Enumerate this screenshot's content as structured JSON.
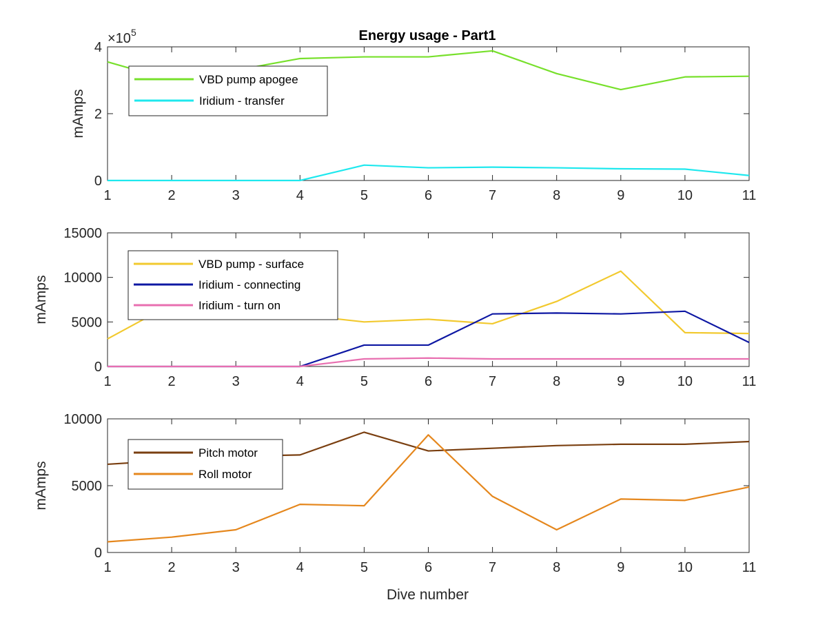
{
  "title": "Energy usage - Part1",
  "chart_data": [
    {
      "type": "line",
      "title": "Energy usage - Part1",
      "xlabel": "",
      "ylabel": "mAmps",
      "x": [
        1,
        2,
        3,
        4,
        5,
        6,
        7,
        8,
        9,
        10,
        11
      ],
      "xlim": [
        1,
        11
      ],
      "ylim": [
        0,
        400000
      ],
      "y_multiplier": "×10^5",
      "y_multiplier_base": "×10",
      "y_multiplier_exp": "5",
      "xticks": [
        "1",
        "2",
        "3",
        "4",
        "5",
        "6",
        "7",
        "8",
        "9",
        "10",
        "11"
      ],
      "yticks": [
        {
          "value": 0,
          "label": "0"
        },
        {
          "value": 200000,
          "label": "2"
        },
        {
          "value": 400000,
          "label": "4"
        }
      ],
      "legend_placement": "top-left",
      "series": [
        {
          "name": "VBD pump apogee",
          "color": "#77e02b",
          "values": [
            355000,
            300000,
            330000,
            365000,
            370000,
            370000,
            388000,
            320000,
            272000,
            310000,
            312000
          ]
        },
        {
          "name": "Iridium - transfer",
          "color": "#1ee8ee",
          "values": [
            0,
            0,
            0,
            0,
            46000,
            38000,
            40000,
            38000,
            35000,
            34000,
            15000
          ]
        }
      ]
    },
    {
      "type": "line",
      "xlabel": "",
      "ylabel": "mAmps",
      "x": [
        1,
        2,
        3,
        4,
        5,
        6,
        7,
        8,
        9,
        10,
        11
      ],
      "xlim": [
        1,
        11
      ],
      "ylim": [
        0,
        15000
      ],
      "xticks": [
        "1",
        "2",
        "3",
        "4",
        "5",
        "6",
        "7",
        "8",
        "9",
        "10",
        "11"
      ],
      "yticks": [
        {
          "value": 0,
          "label": "0"
        },
        {
          "value": 5000,
          "label": "5000"
        },
        {
          "value": 10000,
          "label": "10000"
        },
        {
          "value": 15000,
          "label": "15000"
        }
      ],
      "legend_placement": "top-left",
      "series": [
        {
          "name": "VBD pump - surface",
          "color": "#f2c92e",
          "values": [
            3100,
            7000,
            6300,
            5800,
            5000,
            5300,
            4800,
            7300,
            10700,
            3800,
            3700
          ]
        },
        {
          "name": "Iridium - connecting",
          "color": "#0d17a3",
          "values": [
            0,
            0,
            0,
            0,
            2400,
            2400,
            5900,
            6000,
            5900,
            6200,
            2700
          ]
        },
        {
          "name": "Iridium - turn on",
          "color": "#e86fb0",
          "values": [
            0,
            0,
            0,
            0,
            850,
            950,
            850,
            850,
            850,
            850,
            850
          ]
        }
      ]
    },
    {
      "type": "line",
      "xlabel": "Dive number",
      "ylabel": "mAmps",
      "x": [
        1,
        2,
        3,
        4,
        5,
        6,
        7,
        8,
        9,
        10,
        11
      ],
      "xlim": [
        1,
        11
      ],
      "ylim": [
        0,
        10000
      ],
      "xticks": [
        "1",
        "2",
        "3",
        "4",
        "5",
        "6",
        "7",
        "8",
        "9",
        "10",
        "11"
      ],
      "yticks": [
        {
          "value": 0,
          "label": "0"
        },
        {
          "value": 5000,
          "label": "5000"
        },
        {
          "value": 10000,
          "label": "10000"
        }
      ],
      "legend_placement": "top-left",
      "series": [
        {
          "name": "Pitch motor",
          "color": "#7a3f10",
          "values": [
            6600,
            6900,
            7200,
            7300,
            9000,
            7600,
            7800,
            8000,
            8100,
            8100,
            8300
          ]
        },
        {
          "name": "Roll motor",
          "color": "#e5871d",
          "values": [
            800,
            1150,
            1700,
            3600,
            3500,
            8800,
            4200,
            1700,
            4000,
            3900,
            4900
          ]
        }
      ]
    }
  ]
}
